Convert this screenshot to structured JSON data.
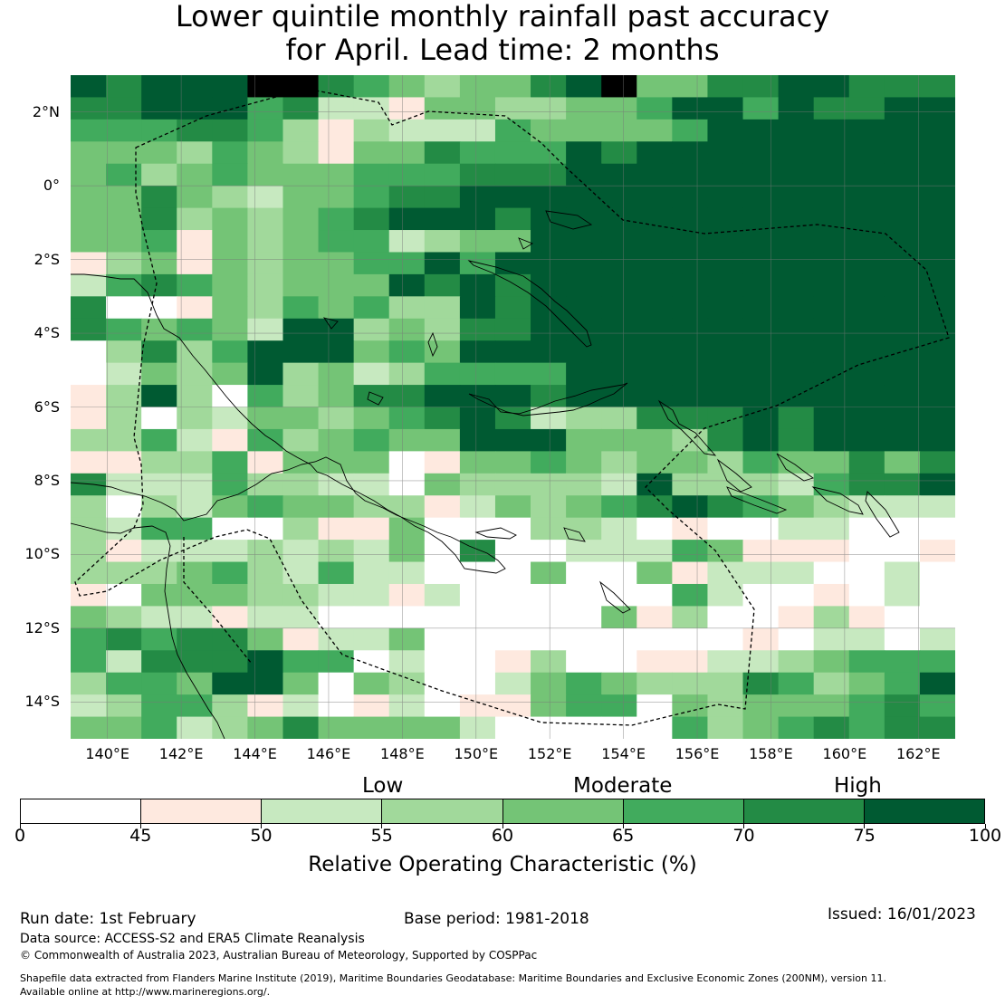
{
  "header": {
    "title_line1": "Lower quintile monthly rainfall past accuracy",
    "title_line2": "for April. Lead time: 2 months"
  },
  "map": {
    "lon_range": [
      139,
      163
    ],
    "lat_range": [
      -15,
      3
    ],
    "lat_labels": [
      "2°N",
      "0°",
      "2°S",
      "4°S",
      "6°S",
      "8°S",
      "10°S",
      "12°S",
      "14°S"
    ],
    "lon_labels": [
      "140°E",
      "142°E",
      "144°E",
      "146°E",
      "148°E",
      "150°E",
      "152°E",
      "154°E",
      "156°E",
      "158°E",
      "160°E",
      "162°E"
    ],
    "grid_rows": [
      "7677788654344678446677666",
      "6677756221443344577576677",
      "5556653132225444457777777",
      "4443543144655576777777777",
      "4534544455566677777777777",
      "4464324456677777777777777",
      "4463434567776777777777777",
      "4451434552344777777777777",
      "1341434455757777777777777",
      "2565434447676777777777777",
      "6001435453376777777777777",
      "6545427734366777777777777",
      "0363577745477777777777777",
      "0243473423555577777777777",
      "1373053466777677777777777",
      "1303244345676233666767777",
      "3352153454477744436767777",
      "1133514440144543443544646",
      "6222533220433332733325667",
      "3032454433124345676543222",
      "3255003114000332010022000",
      "3122232324060022254111001",
      "3334532522000400412220020",
      "1044433221200000052001020",
      "4322122000000004130013100",
      "5656641224000000000102202",
      "5266675502001300112234555",
      "3554774043002454333653457",
      "2355312012011455043444565",
      "4452346444420000053456566"
    ],
    "palette": [
      "#ffffff",
      "#fee9df",
      "#c7e9c0",
      "#a1d99b",
      "#74c476",
      "#41ab5d",
      "#238b45",
      "#005a32"
    ]
  },
  "legend": {
    "category_labels": [
      "Low",
      "Moderate",
      "High"
    ],
    "tick_labels": [
      "0",
      "45",
      "50",
      "55",
      "60",
      "65",
      "70",
      "75",
      "100"
    ],
    "title": "Relative Operating Characteristic (%)"
  },
  "footer": {
    "run_date": "Run date: 1st February",
    "base_period": "Base period: 1981-2018",
    "issued": "Issued: 16/01/2023",
    "data_source": "Data source: ACCESS-S2 and ERA5 Climate Reanalysis",
    "copyright": "© Commonwealth of Australia 2023, Australian Bureau of Meteorology, Supported by COSPPac",
    "shapefile_line1": "Shapefile data extracted from Flanders Marine Institute (2019), Maritime Boundaries Geodatabase: Maritime Boundaries and Exclusive Economic Zones (200NM), version 11.",
    "shapefile_line2": "Available online at http://www.marineregions.org/."
  }
}
